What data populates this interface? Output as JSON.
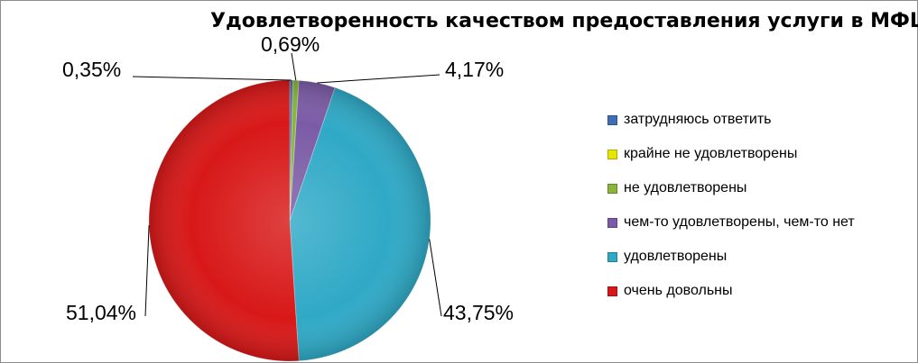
{
  "chart_data": {
    "type": "pie",
    "title": "Удовлетворенность качеством предоставления услуги в МФЦ",
    "legend_position": "right",
    "slices": [
      {
        "label": "затрудняюсь ответить",
        "value": 0.35,
        "value_label": "0,35%",
        "color": "#3F6EB5"
      },
      {
        "label": "крайне не удовлетворены",
        "value": 0.0,
        "value_label": "",
        "color": "#E6E600"
      },
      {
        "label": "не удовлетворены",
        "value": 0.69,
        "value_label": "0,69%",
        "color": "#8AB43A"
      },
      {
        "label": "чем-то удовлетворены, чем-то нет",
        "value": 4.17,
        "value_label": "4,17%",
        "color": "#7B5BA6"
      },
      {
        "label": "удовлетворены",
        "value": 43.75,
        "value_label": "43,75%",
        "color": "#2FA9C6"
      },
      {
        "label": "очень довольны",
        "value": 51.04,
        "value_label": "51,04%",
        "color": "#D81818"
      }
    ]
  }
}
